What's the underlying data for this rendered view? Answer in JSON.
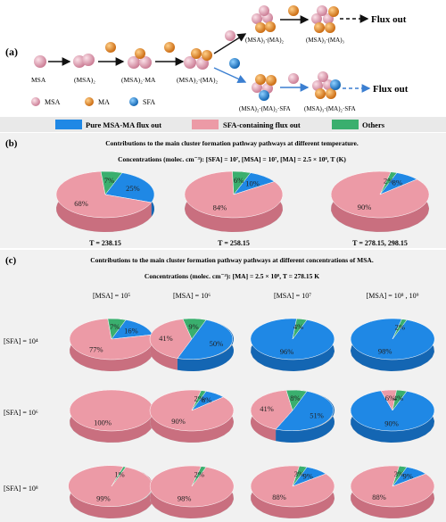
{
  "panel_a": {
    "label": "(a)",
    "steps": [
      "MSA",
      "(MSA)₂",
      "(MSA)₂·MA",
      "(MSA)₂·(MA)₂"
    ],
    "upper_products": [
      "(MSA)₃·(MA)₂",
      "(MSA)₃·(MA)₃"
    ],
    "lower_products": [
      "(MSA)₂·(MA)₂·SFA",
      "(MSA)₃·(MA)₂·SFA"
    ],
    "flux_out": "Flux out",
    "legend": [
      {
        "label": "MSA",
        "color": "#e8a0b4"
      },
      {
        "label": "MA",
        "color": "#f08a1e"
      },
      {
        "label": "SFA",
        "color": "#1a7fd4"
      }
    ]
  },
  "legend": [
    {
      "label": "Pure MSA-MA flux out",
      "color": "#1f88e5"
    },
    {
      "label": "SFA-containing flux out",
      "color": "#ec9aa6"
    },
    {
      "label": "Others",
      "color": "#3aaf6e"
    }
  ],
  "panel_b": {
    "label": "(b)",
    "title": "Contributions to the main cluster formation pathway pathways at different temperature.",
    "conc": "Concentrations (molec. cm⁻³): [SFA] = 10⁷, [MSA] = 10⁷, [MA] = 2.5 × 10⁸, T (K)"
  },
  "panel_c": {
    "label": "(c)",
    "title": "Contributions to the main cluster formation pathway pathways at different concentrations of MSA.",
    "conc": "Concentrations (molec. cm⁻³): [MA] = 2.5 × 10⁸, T = 278.15 K"
  },
  "chart_data": {
    "type": "pie",
    "series_names": [
      "Pure MSA-MA flux out",
      "SFA-containing flux out",
      "Others"
    ],
    "temperature_charts": [
      {
        "label": "T = 238.15",
        "values": [
          25,
          68,
          7
        ]
      },
      {
        "label": "T = 258.15",
        "values": [
          10,
          84,
          6
        ]
      },
      {
        "label": "T = 278.15, 298.15",
        "values": [
          8,
          90,
          2
        ]
      }
    ],
    "msa_columns": [
      "[MSA] = 10⁵",
      "[MSA] = 10⁶",
      "[MSA] = 10⁷",
      "[MSA] = 10⁸ , 10⁹"
    ],
    "sfa_rows": [
      "[SFA] = 10⁴",
      "[SFA] = 10⁶",
      "[SFA] = 10⁸"
    ],
    "grid": [
      [
        [
          16,
          77,
          7
        ],
        [
          50,
          41,
          9
        ],
        [
          96,
          0,
          4
        ],
        [
          98,
          0,
          2
        ]
      ],
      [
        [
          0,
          100,
          0
        ],
        [
          8,
          90,
          2
        ],
        [
          51,
          41,
          8
        ],
        [
          90,
          6,
          4
        ]
      ],
      [
        [
          0,
          99,
          1
        ],
        [
          0,
          98,
          2
        ],
        [
          9,
          88,
          3
        ],
        [
          9,
          88,
          3
        ]
      ]
    ]
  }
}
